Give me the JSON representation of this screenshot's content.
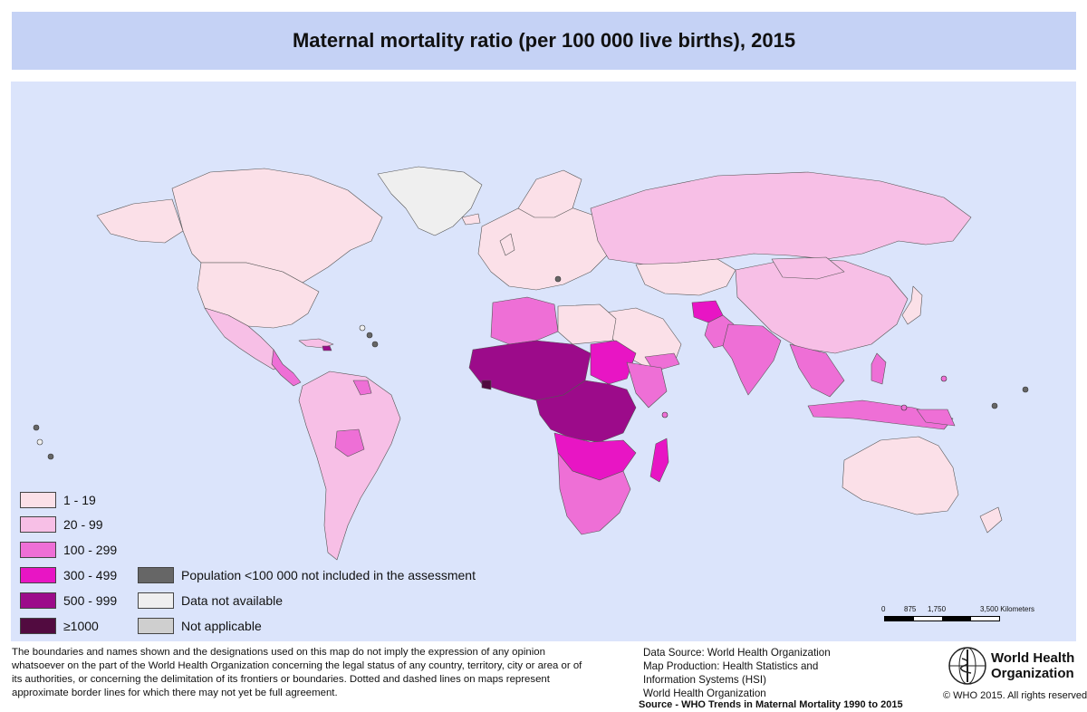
{
  "title": "Maternal mortality ratio (per 100 000 live births), 2015",
  "colors": {
    "ocean": "#dbe4fb",
    "title_bar": "#c5d2f5",
    "border": "#555555",
    "c1_19": "#fbe0e8",
    "c20_99": "#f7bfe6",
    "c100_299": "#ee6fd6",
    "c300_499": "#e815c4",
    "c500_999": "#9c0b8a",
    "c1000": "#520b40",
    "pop_small": "#666666",
    "not_available": "#efefef",
    "not_applicable": "#cfcfcf"
  },
  "legend": {
    "classes": [
      {
        "label": "1 - 19",
        "color": "#fbe0e8"
      },
      {
        "label": "20 - 99",
        "color": "#f7bfe6"
      },
      {
        "label": "100 - 299",
        "color": "#ee6fd6"
      },
      {
        "label": "300 - 499",
        "color": "#e815c4"
      },
      {
        "label": "500 - 999",
        "color": "#9c0b8a"
      },
      {
        "label": "≥1000",
        "color": "#520b40"
      }
    ],
    "other": [
      {
        "label": "Population <100 000 not included in the assessment",
        "color": "#666666"
      },
      {
        "label": "Data not available",
        "color": "#efefef"
      },
      {
        "label": "Not applicable",
        "color": "#cfcfcf"
      }
    ]
  },
  "scale_bar": {
    "ticks": [
      "0",
      "875",
      "1,750",
      "3,500 Kilometers"
    ]
  },
  "disclaimer": "The boundaries and names shown and the designations used on this map do not imply the expression of any opinion whatsoever on the part of the World Health Organization concerning the legal status of any country, territory, city or area or of its authorities, or concerning the delimitation of its frontiers or boundaries. Dotted and dashed lines on maps represent approximate border lines for which there may not yet be full agreement.",
  "data_source": {
    "line1": "Data Source: World Health Organization",
    "line2": "Map Production: Health Statistics and",
    "line3": "Information Systems (HSI)",
    "line4": "World Health Organization"
  },
  "logo": {
    "line1": "World Health",
    "line2": "Organization"
  },
  "copyright": "© WHO 2015. All rights reserved.",
  "source": "Source - WHO Trends in Maternal Mortality 1990 to 2015"
}
